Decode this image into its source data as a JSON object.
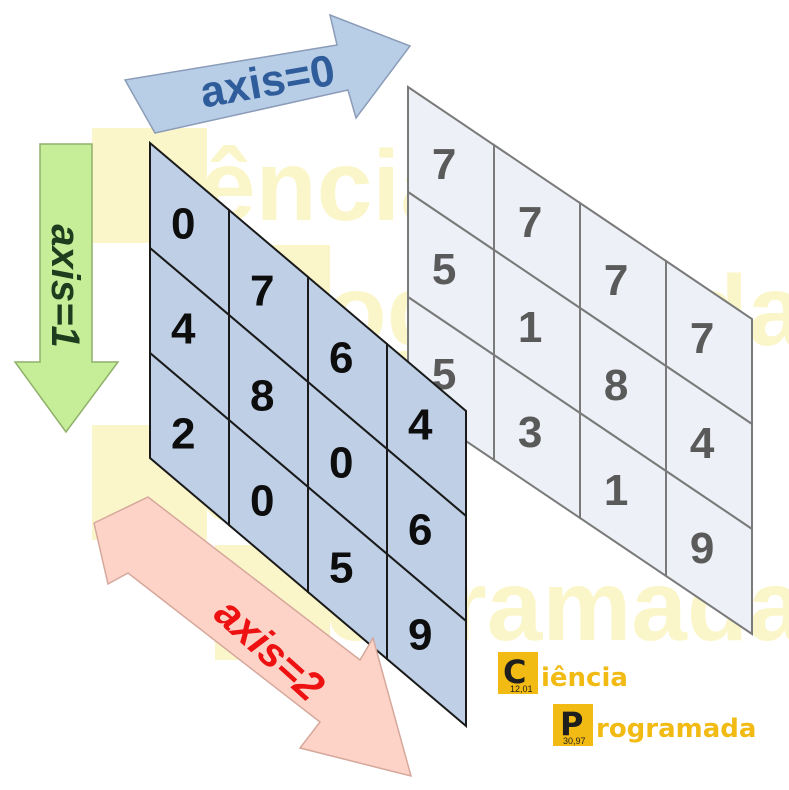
{
  "arrows": {
    "axis0": {
      "label": "axis=0",
      "color": "#2f5d9b",
      "fill": "#b8cde6"
    },
    "axis1": {
      "label": "axis=1",
      "color": "#1e3d1e",
      "fill": "#c6ee98"
    },
    "axis2": {
      "label": "axis=2",
      "color": "#ee1111",
      "fill": "#fdd3c8"
    }
  },
  "front_grid": {
    "rows": [
      [
        0,
        7,
        6,
        4
      ],
      [
        4,
        8,
        0,
        6
      ],
      [
        2,
        0,
        5,
        9
      ]
    ],
    "fill": "#bfd0e6",
    "text_color": "#0d0d0d"
  },
  "back_grid": {
    "rows": [
      [
        7,
        7,
        7,
        7
      ],
      [
        5,
        1,
        8,
        4
      ],
      [
        5,
        3,
        1,
        9
      ]
    ],
    "fill": "#edf0f6",
    "text_color": "#5a5a5a"
  },
  "logo": {
    "element1": {
      "symbol": "C",
      "number": "12,01",
      "word": "iência"
    },
    "element2": {
      "symbol": "P",
      "number": "30,97",
      "word": "rogramada"
    },
    "accent": "#f2bb14",
    "tile_color": "#f2bb14"
  },
  "watermark": {
    "word1": "Ciência",
    "word2": "Programada"
  }
}
